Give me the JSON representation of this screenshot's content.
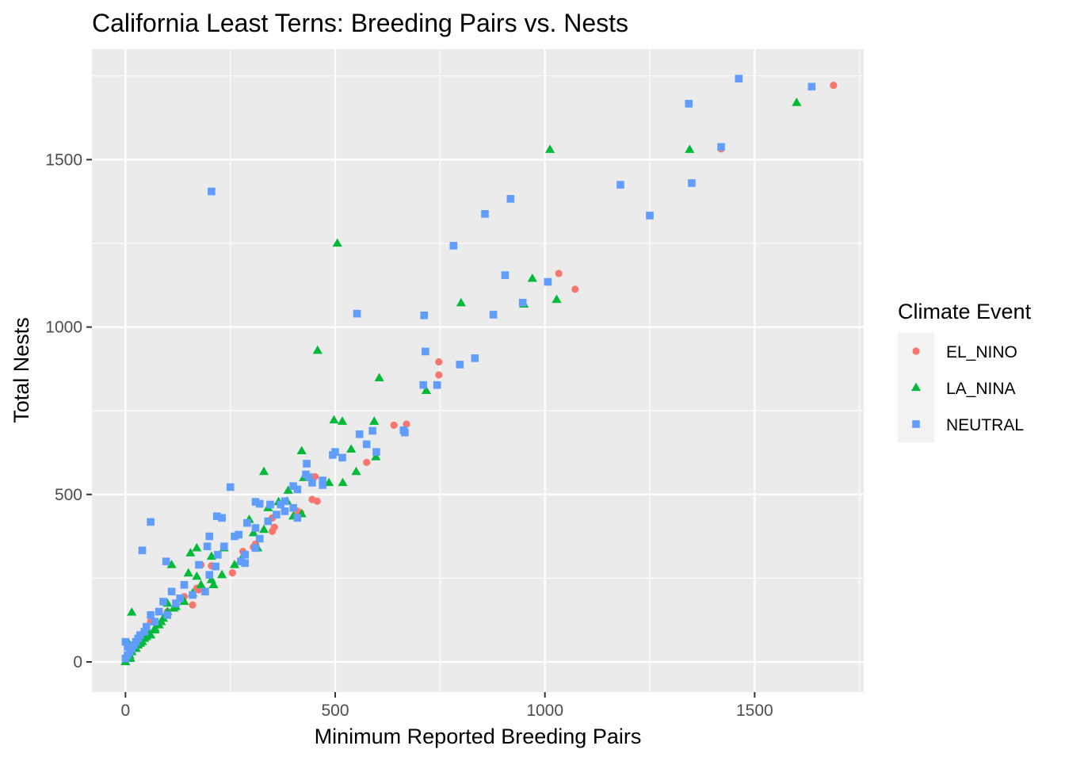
{
  "chart_data": {
    "type": "scatter",
    "title": "California Least Terns: Breeding Pairs vs. Nests",
    "xlabel": "Minimum Reported Breeding Pairs",
    "ylabel": "Total Nests",
    "xlim": [
      -80,
      1760
    ],
    "ylim": [
      -90,
      1830
    ],
    "x_ticks": [
      0,
      500,
      1000,
      1500
    ],
    "y_ticks": [
      0,
      500,
      1000,
      1500
    ],
    "grid": true,
    "legend": {
      "title": "Climate Event",
      "position": "right"
    },
    "colors": {
      "EL_NINO": "#F8766D",
      "LA_NINA": "#00BA38",
      "NEUTRAL": "#619CFF",
      "panel": "#EBEBEB",
      "grid": "#FFFFFF"
    },
    "series": [
      {
        "name": "EL_NINO",
        "marker": "circle",
        "points": [
          [
            1688,
            1722
          ],
          [
            1420,
            1532
          ],
          [
            1033,
            1160
          ],
          [
            1072,
            1113
          ],
          [
            747,
            896
          ],
          [
            747,
            857
          ],
          [
            640,
            707
          ],
          [
            670,
            710
          ],
          [
            575,
            596
          ],
          [
            452,
            553
          ],
          [
            445,
            485
          ],
          [
            457,
            480
          ],
          [
            410,
            450
          ],
          [
            418,
            445
          ],
          [
            350,
            430
          ],
          [
            355,
            402
          ],
          [
            350,
            390
          ],
          [
            310,
            352
          ],
          [
            305,
            343
          ],
          [
            280,
            330
          ],
          [
            205,
            287
          ],
          [
            180,
            290
          ],
          [
            255,
            266
          ],
          [
            170,
            220
          ],
          [
            175,
            215
          ],
          [
            140,
            195
          ],
          [
            160,
            170
          ],
          [
            100,
            150
          ],
          [
            60,
            120
          ],
          [
            50,
            100
          ],
          [
            40,
            80
          ],
          [
            30,
            60
          ],
          [
            20,
            40
          ],
          [
            10,
            20
          ]
        ]
      },
      {
        "name": "LA_NINA",
        "marker": "triangle",
        "points": [
          [
            1600,
            1670
          ],
          [
            1345,
            1530
          ],
          [
            1012,
            1530
          ],
          [
            505,
            1250
          ],
          [
            970,
            1145
          ],
          [
            1028,
            1082
          ],
          [
            800,
            1072
          ],
          [
            950,
            1068
          ],
          [
            458,
            930
          ],
          [
            605,
            848
          ],
          [
            717,
            810
          ],
          [
            497,
            722
          ],
          [
            517,
            718
          ],
          [
            593,
            718
          ],
          [
            538,
            635
          ],
          [
            420,
            630
          ],
          [
            597,
            612
          ],
          [
            550,
            568
          ],
          [
            330,
            568
          ],
          [
            518,
            535
          ],
          [
            485,
            535
          ],
          [
            425,
            550
          ],
          [
            388,
            512
          ],
          [
            385,
            480
          ],
          [
            365,
            478
          ],
          [
            400,
            435
          ],
          [
            420,
            442
          ],
          [
            340,
            460
          ],
          [
            330,
            395
          ],
          [
            295,
            425
          ],
          [
            305,
            385
          ],
          [
            315,
            340
          ],
          [
            170,
            340
          ],
          [
            235,
            340
          ],
          [
            155,
            325
          ],
          [
            205,
            315
          ],
          [
            110,
            290
          ],
          [
            150,
            265
          ],
          [
            170,
            255
          ],
          [
            275,
            305
          ],
          [
            260,
            290
          ],
          [
            230,
            260
          ],
          [
            205,
            245
          ],
          [
            210,
            230
          ],
          [
            160,
            205
          ],
          [
            140,
            180
          ],
          [
            120,
            165
          ],
          [
            100,
            150
          ],
          [
            90,
            130
          ],
          [
            80,
            110
          ],
          [
            70,
            95
          ],
          [
            60,
            80
          ],
          [
            50,
            75
          ],
          [
            40,
            60
          ],
          [
            30,
            50
          ],
          [
            20,
            40
          ],
          [
            15,
            30
          ],
          [
            10,
            20
          ],
          [
            5,
            10
          ],
          [
            15,
            148
          ],
          [
            0,
            0
          ],
          [
            12,
            10
          ],
          [
            8,
            55
          ],
          [
            25,
            40
          ],
          [
            100,
            175
          ],
          [
            115,
            160
          ],
          [
            85,
            120
          ],
          [
            70,
            100
          ],
          [
            55,
            90
          ],
          [
            45,
            70
          ],
          [
            35,
            55
          ],
          [
            180,
            230
          ]
        ]
      },
      {
        "name": "NEUTRAL",
        "marker": "square",
        "points": [
          [
            1462,
            1742
          ],
          [
            1636,
            1718
          ],
          [
            1343,
            1667
          ],
          [
            1420,
            1538
          ],
          [
            1350,
            1430
          ],
          [
            1180,
            1425
          ],
          [
            205,
            1405
          ],
          [
            918,
            1383
          ],
          [
            857,
            1338
          ],
          [
            1250,
            1333
          ],
          [
            782,
            1243
          ],
          [
            905,
            1155
          ],
          [
            1007,
            1135
          ],
          [
            947,
            1073
          ],
          [
            552,
            1040
          ],
          [
            712,
            1035
          ],
          [
            877,
            1037
          ],
          [
            715,
            927
          ],
          [
            833,
            907
          ],
          [
            797,
            888
          ],
          [
            710,
            827
          ],
          [
            743,
            827
          ],
          [
            663,
            692
          ],
          [
            666,
            685
          ],
          [
            589,
            690
          ],
          [
            558,
            680
          ],
          [
            575,
            650
          ],
          [
            500,
            627
          ],
          [
            598,
            627
          ],
          [
            517,
            610
          ],
          [
            494,
            618
          ],
          [
            432,
            592
          ],
          [
            430,
            560
          ],
          [
            437,
            552
          ],
          [
            470,
            542
          ],
          [
            445,
            535
          ],
          [
            400,
            525
          ],
          [
            410,
            515
          ],
          [
            250,
            522
          ],
          [
            470,
            528
          ],
          [
            380,
            480
          ],
          [
            370,
            470
          ],
          [
            310,
            478
          ],
          [
            320,
            472
          ],
          [
            345,
            470
          ],
          [
            400,
            460
          ],
          [
            380,
            450
          ],
          [
            360,
            440
          ],
          [
            410,
            430
          ],
          [
            340,
            420
          ],
          [
            218,
            435
          ],
          [
            230,
            430
          ],
          [
            60,
            418
          ],
          [
            290,
            415
          ],
          [
            310,
            400
          ],
          [
            260,
            375
          ],
          [
            270,
            380
          ],
          [
            200,
            375
          ],
          [
            320,
            368
          ],
          [
            310,
            340
          ],
          [
            285,
            320
          ],
          [
            220,
            320
          ],
          [
            275,
            300
          ],
          [
            235,
            345
          ],
          [
            195,
            345
          ],
          [
            40,
            333
          ],
          [
            97,
            300
          ],
          [
            175,
            290
          ],
          [
            215,
            285
          ],
          [
            285,
            295
          ],
          [
            200,
            260
          ],
          [
            140,
            230
          ],
          [
            190,
            210
          ],
          [
            160,
            200
          ],
          [
            110,
            210
          ],
          [
            130,
            190
          ],
          [
            90,
            180
          ],
          [
            120,
            175
          ],
          [
            80,
            150
          ],
          [
            100,
            140
          ],
          [
            60,
            140
          ],
          [
            70,
            120
          ],
          [
            50,
            105
          ],
          [
            45,
            90
          ],
          [
            35,
            80
          ],
          [
            30,
            70
          ],
          [
            25,
            60
          ],
          [
            20,
            50
          ],
          [
            15,
            40
          ],
          [
            10,
            30
          ],
          [
            5,
            20
          ],
          [
            0,
            10
          ],
          [
            0,
            60
          ],
          [
            5,
            45
          ]
        ]
      }
    ]
  }
}
